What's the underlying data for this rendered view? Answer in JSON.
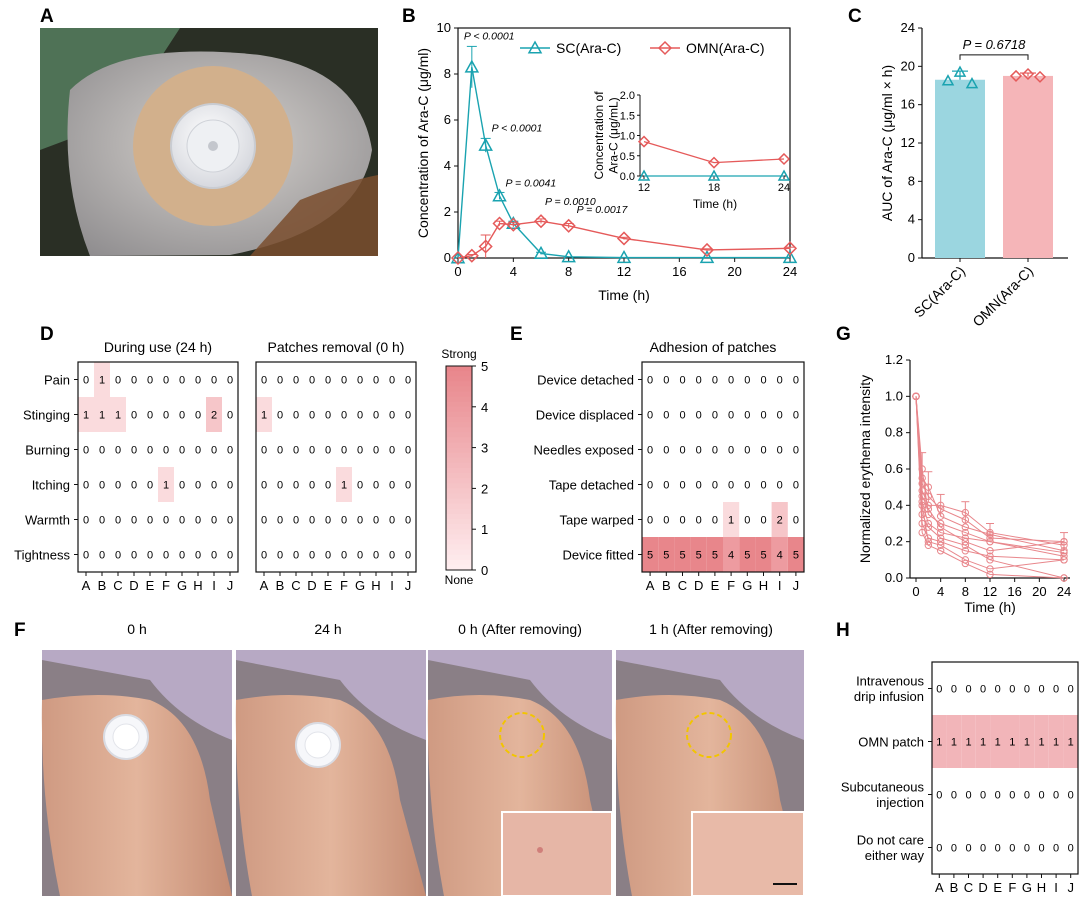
{
  "panels": {
    "A": {
      "label": "A"
    },
    "B": {
      "label": "B"
    },
    "C": {
      "label": "C"
    },
    "D": {
      "label": "D"
    },
    "E": {
      "label": "E"
    },
    "F": {
      "label": "F"
    },
    "G": {
      "label": "G"
    },
    "H": {
      "label": "H"
    }
  },
  "chart_data": [
    {
      "id": "B",
      "type": "line",
      "xlabel": "Time (h)",
      "ylabel": "Concentration of Ara-C (μg/ml)",
      "xlim": [
        0,
        24
      ],
      "ylim": [
        0,
        10
      ],
      "xticks": [
        "0",
        "4",
        "8",
        "12",
        "16",
        "20",
        "24"
      ],
      "yticks": [
        "0",
        "2",
        "4",
        "6",
        "8",
        "10"
      ],
      "legend_position": "top-right",
      "series": [
        {
          "name": "SC(Ara-C)",
          "color": "#1aa3b0",
          "marker": "triangle",
          "x": [
            0,
            1,
            2,
            3,
            4,
            6,
            8,
            12,
            18,
            24
          ],
          "y": [
            0,
            8.3,
            4.9,
            2.7,
            1.5,
            0.2,
            0.05,
            0.02,
            0.02,
            0.02
          ],
          "err": [
            0,
            0.9,
            0.3,
            0.15,
            0.1,
            0.05,
            0,
            0,
            0,
            0
          ]
        },
        {
          "name": "OMN(Ara-C)",
          "color": "#e55a5a",
          "marker": "diamond",
          "x": [
            0,
            1,
            2,
            3,
            4,
            6,
            8,
            12,
            18,
            24
          ],
          "y": [
            0,
            0.1,
            0.5,
            1.5,
            1.45,
            1.6,
            1.4,
            0.85,
            0.35,
            0.42
          ],
          "err": [
            0,
            0.05,
            0.5,
            0.1,
            0.1,
            0.1,
            0.1,
            0.05,
            0.05,
            0.05
          ]
        }
      ],
      "annotations": [
        {
          "text": "P < 0.0001",
          "x": 1
        },
        {
          "text": "P < 0.0001",
          "x": 2
        },
        {
          "text": "P = 0.0041",
          "x": 3
        },
        {
          "text": "P = 0.0010",
          "x": 6
        },
        {
          "text": "P = 0.0017",
          "x": 8
        }
      ],
      "inset": {
        "xlabel": "Time (h)",
        "ylabel": "Concentration of Ara-C (μg/mL)",
        "xlim": [
          12,
          24
        ],
        "ylim": [
          0,
          2.0
        ],
        "xticks": [
          "12",
          "18",
          "24"
        ],
        "yticks": [
          "0.0",
          "0.5",
          "1.0",
          "1.5",
          "2.0"
        ],
        "sc": {
          "x": [
            12,
            18,
            24
          ],
          "y": [
            0,
            0,
            0
          ]
        },
        "omn": {
          "x": [
            12,
            18,
            24
          ],
          "y": [
            0.85,
            0.33,
            0.42
          ]
        }
      }
    },
    {
      "id": "C",
      "type": "bar",
      "ylabel": "AUC of Ara-C (μg/ml × h)",
      "ylim": [
        0,
        24
      ],
      "yticks": [
        "0",
        "4",
        "8",
        "12",
        "16",
        "20",
        "24"
      ],
      "categories": [
        "SC(Ara-C)",
        "OMN(Ara-C)"
      ],
      "values": [
        18.6,
        19.0
      ],
      "err": [
        0.9,
        0.3
      ],
      "points": [
        [
          18.5,
          19.4,
          18.2
        ],
        [
          19.0,
          19.2,
          18.9
        ]
      ],
      "colors": [
        "#9bd6e0",
        "#f5b5b8"
      ],
      "marker_colors": [
        "#1aa3b0",
        "#e55a5a"
      ],
      "annotation": "P = 0.6718"
    },
    {
      "id": "D",
      "type": "heatmap",
      "rows": [
        "Pain",
        "Stinging",
        "Burning",
        "Itching",
        "Warmth",
        "Tightness"
      ],
      "columns": [
        "A",
        "B",
        "C",
        "D",
        "E",
        "F",
        "G",
        "H",
        "I",
        "J"
      ],
      "subplots": [
        {
          "title": "During use (24 h)",
          "values": [
            [
              0,
              1,
              0,
              0,
              0,
              0,
              0,
              0,
              0,
              0
            ],
            [
              1,
              1,
              1,
              0,
              0,
              0,
              0,
              0,
              2,
              0
            ],
            [
              0,
              0,
              0,
              0,
              0,
              0,
              0,
              0,
              0,
              0
            ],
            [
              0,
              0,
              0,
              0,
              0,
              1,
              0,
              0,
              0,
              0
            ],
            [
              0,
              0,
              0,
              0,
              0,
              0,
              0,
              0,
              0,
              0
            ],
            [
              0,
              0,
              0,
              0,
              0,
              0,
              0,
              0,
              0,
              0
            ]
          ]
        },
        {
          "title": "Patches removal (0 h)",
          "values": [
            [
              0,
              0,
              0,
              0,
              0,
              0,
              0,
              0,
              0,
              0
            ],
            [
              1,
              0,
              0,
              0,
              0,
              0,
              0,
              0,
              0,
              0
            ],
            [
              0,
              0,
              0,
              0,
              0,
              0,
              0,
              0,
              0,
              0
            ],
            [
              0,
              0,
              0,
              0,
              0,
              1,
              0,
              0,
              0,
              0
            ],
            [
              0,
              0,
              0,
              0,
              0,
              0,
              0,
              0,
              0,
              0
            ],
            [
              0,
              0,
              0,
              0,
              0,
              0,
              0,
              0,
              0,
              0
            ]
          ]
        }
      ],
      "colorbar": {
        "ticks": [
          "0",
          "1",
          "2",
          "3",
          "4",
          "5"
        ],
        "top_label": "Strong",
        "bottom_label": "None",
        "max": 5
      }
    },
    {
      "id": "E",
      "type": "heatmap",
      "title": "Adhesion of patches",
      "rows": [
        "Device detached",
        "Device displaced",
        "Needles exposed",
        "Tape detached",
        "Tape warped",
        "Device fitted"
      ],
      "columns": [
        "A",
        "B",
        "C",
        "D",
        "E",
        "F",
        "G",
        "H",
        "I",
        "J"
      ],
      "values": [
        [
          0,
          0,
          0,
          0,
          0,
          0,
          0,
          0,
          0,
          0
        ],
        [
          0,
          0,
          0,
          0,
          0,
          0,
          0,
          0,
          0,
          0
        ],
        [
          0,
          0,
          0,
          0,
          0,
          0,
          0,
          0,
          0,
          0
        ],
        [
          0,
          0,
          0,
          0,
          0,
          0,
          0,
          0,
          0,
          0
        ],
        [
          0,
          0,
          0,
          0,
          0,
          1,
          0,
          0,
          2,
          0
        ],
        [
          5,
          5,
          5,
          5,
          5,
          4,
          5,
          5,
          4,
          5
        ]
      ]
    },
    {
      "id": "G",
      "type": "line",
      "xlabel": "Time (h)",
      "ylabel": "Normalized erythema intensity",
      "xlim": [
        0,
        24
      ],
      "ylim": [
        0,
        1.2
      ],
      "xticks": [
        "0",
        "4",
        "8",
        "12",
        "16",
        "20",
        "24"
      ],
      "yticks": [
        "0.0",
        "0.2",
        "0.4",
        "0.6",
        "0.8",
        "1.0",
        "1.2"
      ],
      "color": "#e8868b",
      "x": [
        0,
        1,
        2,
        4,
        8,
        12,
        24
      ],
      "series": [
        {
          "y": [
            1.0,
            0.52,
            0.45,
            0.38,
            0.32,
            0.22,
            0.2
          ]
        },
        {
          "y": [
            1.0,
            0.48,
            0.4,
            0.4,
            0.36,
            0.25,
            0.18
          ]
        },
        {
          "y": [
            1.0,
            0.55,
            0.5,
            0.34,
            0.28,
            0.24,
            0.15
          ]
        },
        {
          "y": [
            1.0,
            0.42,
            0.3,
            0.25,
            0.22,
            0.2,
            0.14
          ]
        },
        {
          "y": [
            1.0,
            0.35,
            0.28,
            0.22,
            0.18,
            0.1,
            0.0
          ]
        },
        {
          "y": [
            1.0,
            0.3,
            0.22,
            0.2,
            0.15,
            0.12,
            0.1
          ]
        },
        {
          "y": [
            1.0,
            0.25,
            0.18,
            0.15,
            0.08,
            0.02,
            0.0
          ]
        },
        {
          "y": [
            1.0,
            0.6,
            0.35,
            0.3,
            0.25,
            0.2,
            0.12
          ]
        },
        {
          "y": [
            1.0,
            0.45,
            0.38,
            0.28,
            0.2,
            0.15,
            0.2
          ]
        },
        {
          "y": [
            1.0,
            0.4,
            0.2,
            0.18,
            0.1,
            0.05,
            0.1
          ]
        }
      ],
      "mean_err": [
        0,
        0.18,
        0.17,
        0.12,
        0.12,
        0.1,
        0.1
      ]
    },
    {
      "id": "H",
      "type": "heatmap",
      "rows": [
        "Intravenous\ndrip infusion",
        "OMN patch",
        "Subcutaneous\ninjection",
        "Do not care\neither way"
      ],
      "columns": [
        "A",
        "B",
        "C",
        "D",
        "E",
        "F",
        "G",
        "H",
        "I",
        "J"
      ],
      "values": [
        [
          0,
          0,
          0,
          0,
          0,
          0,
          0,
          0,
          0,
          0
        ],
        [
          1,
          1,
          1,
          1,
          1,
          1,
          1,
          1,
          1,
          1
        ],
        [
          0,
          0,
          0,
          0,
          0,
          0,
          0,
          0,
          0,
          0
        ],
        [
          0,
          0,
          0,
          0,
          0,
          0,
          0,
          0,
          0,
          0
        ]
      ]
    }
  ],
  "photos_F": [
    {
      "title": "0 h"
    },
    {
      "title": "24 h"
    },
    {
      "title": "0 h (After removing)"
    },
    {
      "title": "1 h (After removing)"
    }
  ],
  "colors": {
    "teal": "#1aa3b0",
    "red": "#e55a5a",
    "heat_max": "#e8868b"
  }
}
